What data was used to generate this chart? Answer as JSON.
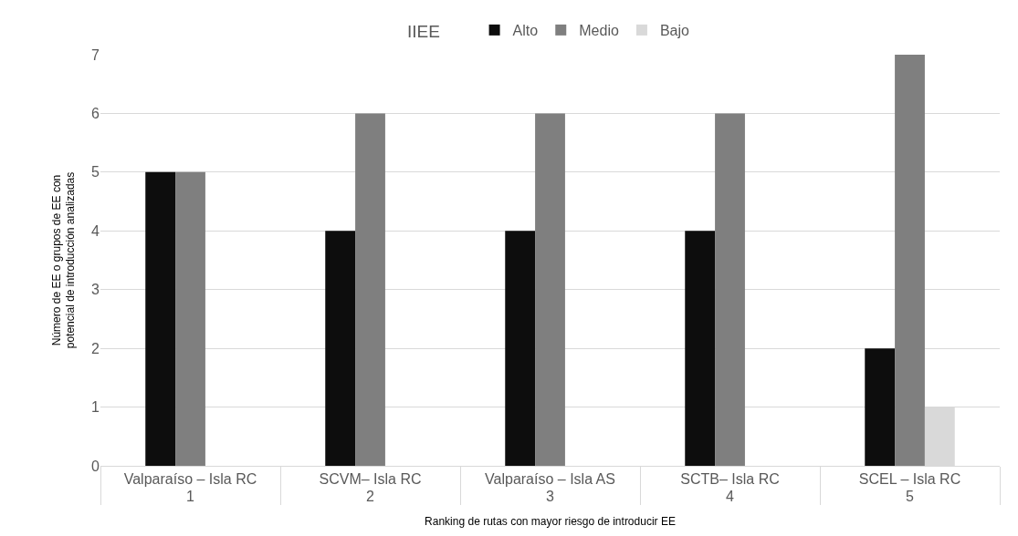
{
  "chart_data": {
    "type": "bar",
    "xlabel": "Ranking de rutas con mayor riesgo de introducir EE",
    "ylabel": "Número de EE o grupos de EE con potencial de introducción analizadas",
    "legend_title": "IIEE",
    "legend": "top",
    "categories": [
      "Valparaíso – Isla RC\n1",
      "SCVM– Isla RC\n2",
      "Valparaíso – Isla AS\n3",
      "SCTB– Isla RC\n4",
      "SCEL – Isla RC\n5"
    ],
    "series": [
      {
        "name": "Alto",
        "color": "#0d0d0d",
        "values": [
          5,
          4,
          4,
          4,
          2
        ]
      },
      {
        "name": "Medio",
        "color": "#7f7f7f",
        "values": [
          5,
          6,
          6,
          6,
          7
        ]
      },
      {
        "name": "Bajo",
        "color": "#d9d9d9",
        "values": [
          null,
          null,
          null,
          null,
          1
        ]
      }
    ],
    "ylim": [
      0,
      7
    ],
    "yticks": [
      0,
      1,
      2,
      3,
      4,
      5,
      6,
      7
    ],
    "grid": "y"
  }
}
